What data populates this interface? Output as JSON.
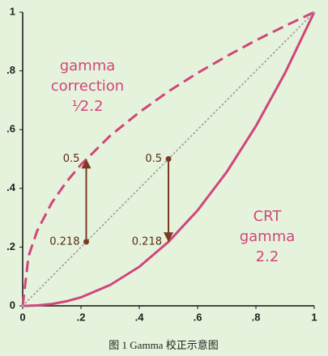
{
  "chart_data": {
    "type": "line",
    "caption": "图 1 Gamma 校正示意图",
    "x": [
      0,
      0.02,
      0.05,
      0.1,
      0.15,
      0.2,
      0.3,
      0.4,
      0.5,
      0.6,
      0.7,
      0.8,
      0.9,
      1
    ],
    "series": [
      {
        "label_lines": [
          "gamma",
          "correction",
          "¹⁄2.2"
        ],
        "color": "#d0467b",
        "dash": true,
        "values": [
          0,
          0.169,
          0.256,
          0.351,
          0.422,
          0.481,
          0.579,
          0.659,
          0.73,
          0.793,
          0.85,
          0.904,
          0.953,
          1
        ]
      },
      {
        "label_lines": [
          "CRT",
          "gamma",
          "2.2"
        ],
        "color": "#d0467b",
        "dash": false,
        "values": [
          0,
          0.0002,
          0.0014,
          0.0063,
          0.0154,
          0.029,
          0.071,
          0.133,
          0.218,
          0.325,
          0.456,
          0.612,
          0.793,
          1
        ]
      },
      {
        "color": "#a8a8a8",
        "dotted": true,
        "values": [
          0,
          0.02,
          0.05,
          0.1,
          0.15,
          0.2,
          0.3,
          0.4,
          0.5,
          0.6,
          0.7,
          0.8,
          0.9,
          1
        ]
      }
    ],
    "arrows": [
      {
        "x": 0.218,
        "y_from": 0.218,
        "y_to": 0.5,
        "from_label": "0.218",
        "to_label": "0.5",
        "color": "#7a3a22"
      },
      {
        "x": 0.5,
        "y_from": 0.5,
        "y_to": 0.218,
        "from_label": "0.5",
        "to_label": "0.218",
        "color": "#7a3a22"
      }
    ],
    "xlim": [
      0,
      1
    ],
    "ylim": [
      0,
      1
    ],
    "xticks": [
      0,
      {
        "value": 0.2,
        "label": ".2"
      },
      {
        "value": 0.4,
        "label": ".4"
      },
      {
        "value": 0.6,
        "label": ".6"
      },
      {
        "value": 0.8,
        "label": ".8"
      },
      1
    ],
    "yticks": [
      0,
      {
        "value": 0.2,
        "label": ".2"
      },
      {
        "value": 0.4,
        "label": ".4"
      },
      {
        "value": 0.6,
        "label": ".6"
      },
      {
        "value": 0.8,
        "label": ".8"
      },
      1
    ]
  }
}
